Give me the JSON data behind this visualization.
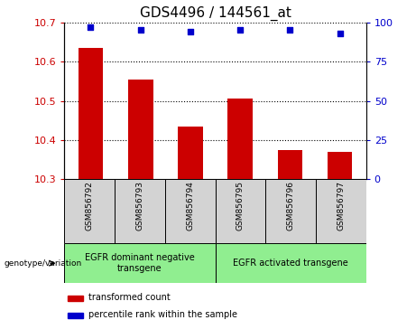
{
  "title": "GDS4496 / 144561_at",
  "samples": [
    "GSM856792",
    "GSM856793",
    "GSM856794",
    "GSM856795",
    "GSM856796",
    "GSM856797"
  ],
  "bar_values": [
    10.635,
    10.555,
    10.435,
    10.505,
    10.375,
    10.37
  ],
  "scatter_values": [
    97,
    95,
    94,
    95,
    95,
    93
  ],
  "ylim_left": [
    10.3,
    10.7
  ],
  "ylim_right": [
    0,
    100
  ],
  "yticks_left": [
    10.3,
    10.4,
    10.5,
    10.6,
    10.7
  ],
  "yticks_right": [
    0,
    25,
    50,
    75,
    100
  ],
  "bar_color": "#cc0000",
  "scatter_color": "#0000cc",
  "bar_width": 0.5,
  "group1_label": "EGFR dominant negative\ntransgene",
  "group2_label": "EGFR activated transgene",
  "genotype_label": "genotype/variation",
  "legend_bar_label": "transformed count",
  "legend_scatter_label": "percentile rank within the sample",
  "group_bg_color": "#90EE90",
  "sample_bg_color": "#d3d3d3",
  "title_fontsize": 11,
  "tick_fontsize": 8,
  "label_fontsize": 7.5
}
